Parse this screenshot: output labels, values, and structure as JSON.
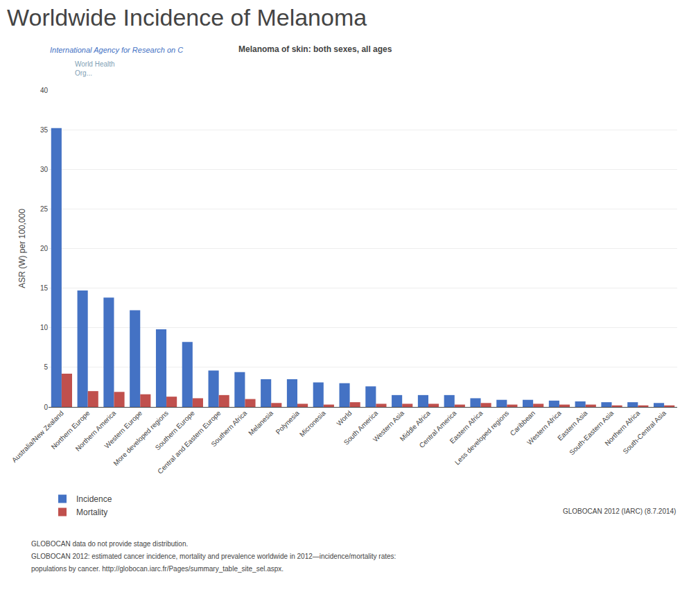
{
  "chart_data": {
    "type": "bar",
    "title": "Worldwide Incidence of Melanoma",
    "subtitle": "Melanoma of skin: both sexes, all ages",
    "ylabel": "ASR (W) per 100,000",
    "categories": [
      "Australia/New Zealand",
      "Northern Europe",
      "Northern America",
      "Western Europe",
      "More developed regions",
      "Southern Europe",
      "Central and Eastern Europe",
      "Southern Africa",
      "Melanesia",
      "Polynesia",
      "Micronesia",
      "World",
      "South America",
      "Western Asia",
      "Middle Africa",
      "Central America",
      "Eastern Africa",
      "Less developed regions",
      "Caribbean",
      "Western Africa",
      "Eastern Asia",
      "South-Eastern Asia",
      "Northern Africa",
      "South-Central Asia"
    ],
    "series": [
      {
        "name": "Incidence",
        "color": "#4472C4",
        "values": [
          35.2,
          14.7,
          13.8,
          12.2,
          9.8,
          8.2,
          4.6,
          4.4,
          3.5,
          3.5,
          3.1,
          3.0,
          2.6,
          1.5,
          1.5,
          1.5,
          1.1,
          0.9,
          0.9,
          0.8,
          0.7,
          0.6,
          0.6,
          0.5
        ]
      },
      {
        "name": "Mortality",
        "color": "#C0504D",
        "values": [
          4.2,
          2.0,
          1.9,
          1.6,
          1.3,
          1.1,
          1.5,
          1.0,
          0.5,
          0.4,
          0.3,
          0.6,
          0.4,
          0.4,
          0.4,
          0.3,
          0.5,
          0.3,
          0.4,
          0.3,
          0.3,
          0.2,
          0.2,
          0.2
        ]
      }
    ],
    "ylim": [
      0,
      40
    ],
    "yticks": [
      0,
      5,
      10,
      15,
      20,
      25,
      30,
      35,
      40
    ],
    "grid": true,
    "legend": "bottom",
    "annotations": [
      "International Agency for Research on C",
      "World Health\nOrg...",
      "GLOBOCAN 2012 (IARC) (8.7.2014)",
      "GLOBOCAN data do not provide stage distribution.",
      "GLOBOCAN 2012: estimated cancer incidence, mortality and prevalence worldwide in 2012—incidence/mortality rates:",
      "populations by cancer. http://globocan.iarc.fr/Pages/summary_table_site_sel.aspx."
    ]
  }
}
